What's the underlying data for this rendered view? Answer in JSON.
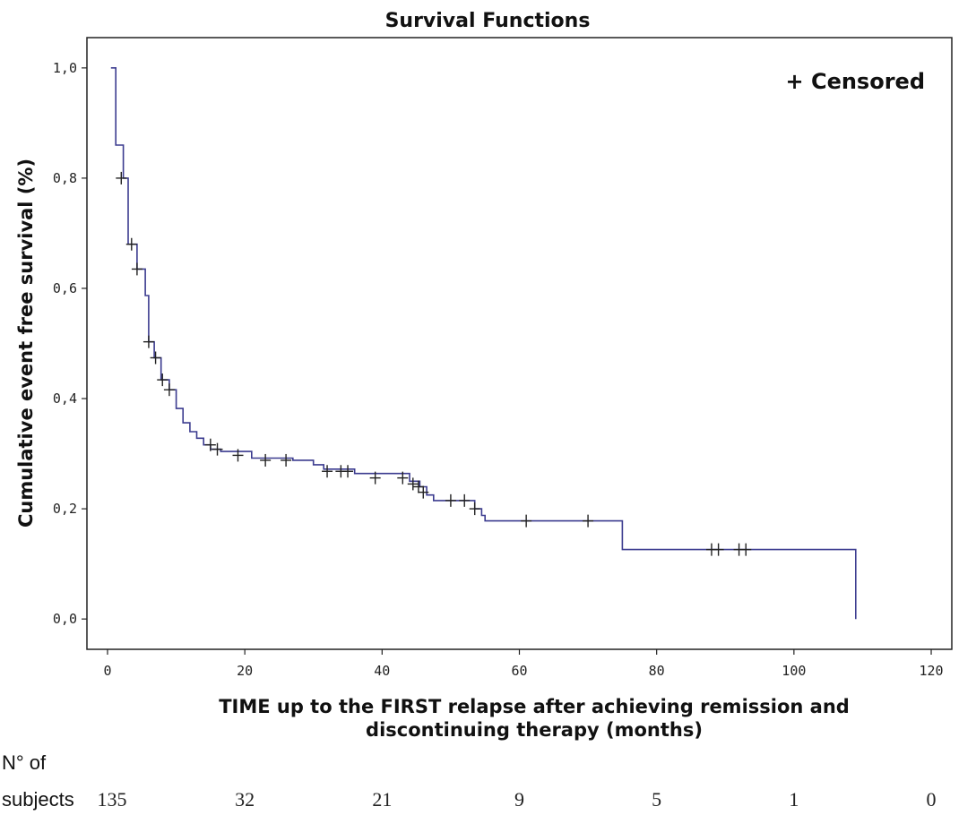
{
  "chart_data": {
    "type": "line",
    "subtype": "kaplan-meier-step",
    "title": "Survival Functions",
    "xlabel_lines": [
      "TIME up to the FIRST relapse after achieving remission and",
      "discontinuing therapy (months)"
    ],
    "ylabel": "Cumulative event free survival (%)",
    "xlim": [
      -3,
      123
    ],
    "ylim": [
      -0.055,
      1.055
    ],
    "x_ticks": [
      0,
      20,
      40,
      60,
      80,
      100,
      120
    ],
    "y_ticks": [
      0.0,
      0.2,
      0.4,
      0.6,
      0.8,
      1.0
    ],
    "y_tick_labels": [
      "0,0",
      "0,2",
      "0,4",
      "0,6",
      "0,8",
      "1,0"
    ],
    "legend": {
      "text": "+ Censored",
      "placement": "top-right"
    },
    "line_color": "#3b3b8f",
    "grid": false,
    "series": [
      {
        "steps": [
          [
            0.5,
            1.0
          ],
          [
            1.2,
            0.86
          ],
          [
            2.3,
            0.8
          ],
          [
            3.0,
            0.68
          ],
          [
            4.3,
            0.635
          ],
          [
            5.5,
            0.587
          ],
          [
            6.0,
            0.503
          ],
          [
            6.8,
            0.474
          ],
          [
            7.8,
            0.434
          ],
          [
            9.0,
            0.416
          ],
          [
            10.0,
            0.382
          ],
          [
            11.0,
            0.356
          ],
          [
            12.0,
            0.34
          ],
          [
            13.0,
            0.328
          ],
          [
            14.0,
            0.316
          ],
          [
            15.0,
            0.308
          ],
          [
            16.5,
            0.304
          ],
          [
            21.0,
            0.292
          ],
          [
            27.0,
            0.288
          ],
          [
            30.0,
            0.28
          ],
          [
            31.5,
            0.272
          ],
          [
            36.0,
            0.264
          ],
          [
            44.0,
            0.25
          ],
          [
            45.5,
            0.24
          ],
          [
            46.5,
            0.225
          ],
          [
            47.5,
            0.215
          ],
          [
            53.5,
            0.2
          ],
          [
            54.5,
            0.188
          ],
          [
            55.0,
            0.178
          ],
          [
            75.0,
            0.126
          ],
          [
            109.0,
            0.126
          ],
          [
            109.0,
            0.0
          ]
        ],
        "censored": [
          [
            2.0,
            0.8
          ],
          [
            3.5,
            0.68
          ],
          [
            4.3,
            0.635
          ],
          [
            6.0,
            0.503
          ],
          [
            7.0,
            0.474
          ],
          [
            8.0,
            0.434
          ],
          [
            9.0,
            0.416
          ],
          [
            15.0,
            0.316
          ],
          [
            16.0,
            0.308
          ],
          [
            19.0,
            0.297
          ],
          [
            23.0,
            0.288
          ],
          [
            26.0,
            0.288
          ],
          [
            32.0,
            0.268
          ],
          [
            34.0,
            0.268
          ],
          [
            35.0,
            0.268
          ],
          [
            39.0,
            0.256
          ],
          [
            43.0,
            0.256
          ],
          [
            44.5,
            0.245
          ],
          [
            45.3,
            0.24
          ],
          [
            46.0,
            0.23
          ],
          [
            50.0,
            0.215
          ],
          [
            52.0,
            0.215
          ],
          [
            53.5,
            0.2
          ],
          [
            61.0,
            0.178
          ],
          [
            70.0,
            0.178
          ],
          [
            88.0,
            0.126
          ],
          [
            89.0,
            0.126
          ],
          [
            92.0,
            0.126
          ],
          [
            93.0,
            0.126
          ]
        ]
      }
    ],
    "risk_table": {
      "label_lines": [
        "N° of",
        "subjects"
      ],
      "values": [
        "135",
        "32",
        "21",
        "9",
        "5",
        "1",
        "0"
      ]
    }
  }
}
